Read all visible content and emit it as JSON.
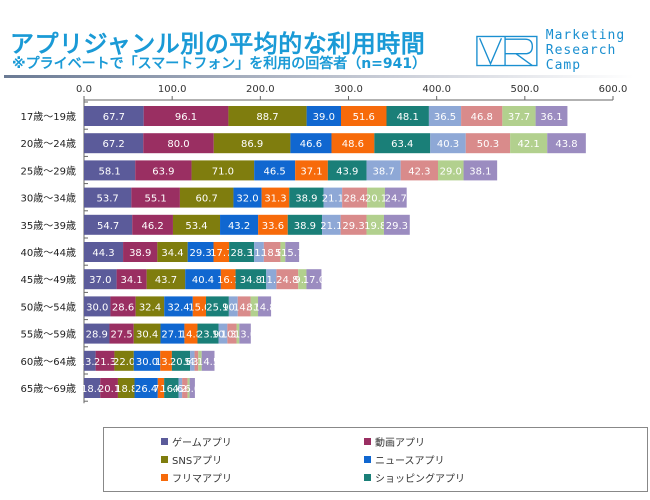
{
  "header": {
    "title": "アプリジャンル別の平均的な利用時間",
    "subtitle": "※プライベートで「スマートフォン」を利用の回答者（n=941）",
    "logo_icon": "mr-logo-icon",
    "logo_line1": "Marketing",
    "logo_line2": "Research Camp",
    "accent_color": "#1a9ad6"
  },
  "chart_data": {
    "type": "bar",
    "orientation": "horizontal",
    "stacked": true,
    "title": "アプリジャンル別の平均的な利用時間",
    "xlabel": "",
    "ylabel": "",
    "xlim": [
      0,
      600
    ],
    "xticks": [
      "0.0",
      "100.0",
      "200.0",
      "300.0",
      "400.0",
      "500.0",
      "600.0"
    ],
    "xaxis_position": "top",
    "grid": false,
    "legend_position": "bottom",
    "categories": [
      "17歳〜19歳",
      "20歳〜24歳",
      "25歳〜29歳",
      "30歳〜34歳",
      "35歳〜39歳",
      "40歳〜44歳",
      "45歳〜49歳",
      "50歳〜54歳",
      "55歳〜59歳",
      "60歳〜64歳",
      "65歳〜69歳"
    ],
    "series": [
      {
        "name": "ゲームアプリ",
        "color": "#5b5b9a",
        "values": [
          67.7,
          67.2,
          58.1,
          53.7,
          54.7,
          44.3,
          37.0,
          30.0,
          28.9,
          13.2,
          18.4
        ]
      },
      {
        "name": "動画アプリ",
        "color": "#9a2f62",
        "values": [
          96.1,
          80.0,
          63.9,
          55.1,
          46.2,
          38.9,
          34.1,
          28.6,
          27.5,
          21.3,
          20.1
        ]
      },
      {
        "name": "SNSアプリ",
        "color": "#7f7d0e",
        "values": [
          88.7,
          86.9,
          71.0,
          60.7,
          53.4,
          34.4,
          43.7,
          32.4,
          30.4,
          22.0,
          18.8
        ]
      },
      {
        "name": "ニュースアプリ",
        "color": "#1067d0",
        "values": [
          39.0,
          46.6,
          46.5,
          32.0,
          43.2,
          29.3,
          40.4,
          32.4,
          27.1,
          30.0,
          26.4
        ]
      },
      {
        "name": "フリマアプリ",
        "color": "#f76a0a",
        "values": [
          51.6,
          48.6,
          37.1,
          31.3,
          33.6,
          17.7,
          16.7,
          15.0,
          14.8,
          13.2,
          7.2
        ]
      },
      {
        "name": "ショッピングアプリ",
        "color": "#1a7f78",
        "values": [
          48.1,
          63.4,
          43.9,
          38.9,
          38.9,
          28.3,
          34.8,
          25.9,
          23.9,
          20.6,
          16.4
        ]
      },
      {
        "name": "",
        "color": "#8ea8d6",
        "values": [
          36.5,
          40.3,
          38.7,
          21.1,
          21.1,
          11.1,
          11.5,
          10.1,
          10.0,
          5.1,
          4.0
        ]
      },
      {
        "name": "",
        "color": "#d98b8b",
        "values": [
          46.8,
          50.3,
          42.3,
          28.4,
          29.3,
          18.8,
          24.8,
          14.5,
          10.4,
          4.2,
          6.2
        ]
      },
      {
        "name": "",
        "color": "#b2d08e",
        "values": [
          37.7,
          42.1,
          29.0,
          20.1,
          19.8,
          5.5,
          9.3,
          8.5,
          3.2,
          3.9,
          2.3
        ]
      },
      {
        "name": "",
        "color": "#9b8cc0",
        "values": [
          36.1,
          43.8,
          38.1,
          24.7,
          29.3,
          15.7,
          17.0,
          14.8,
          13.0,
          14.5,
          6.0
        ]
      }
    ]
  },
  "legend": {
    "items": [
      {
        "label": "ゲームアプリ",
        "color": "#5b5b9a"
      },
      {
        "label": "動画アプリ",
        "color": "#9a2f62"
      },
      {
        "label": "SNSアプリ",
        "color": "#7f7d0e"
      },
      {
        "label": "ニュースアプリ",
        "color": "#1067d0"
      },
      {
        "label": "フリマアプリ",
        "color": "#f76a0a"
      },
      {
        "label": "ショッピングアプリ",
        "color": "#1a7f78"
      }
    ]
  }
}
